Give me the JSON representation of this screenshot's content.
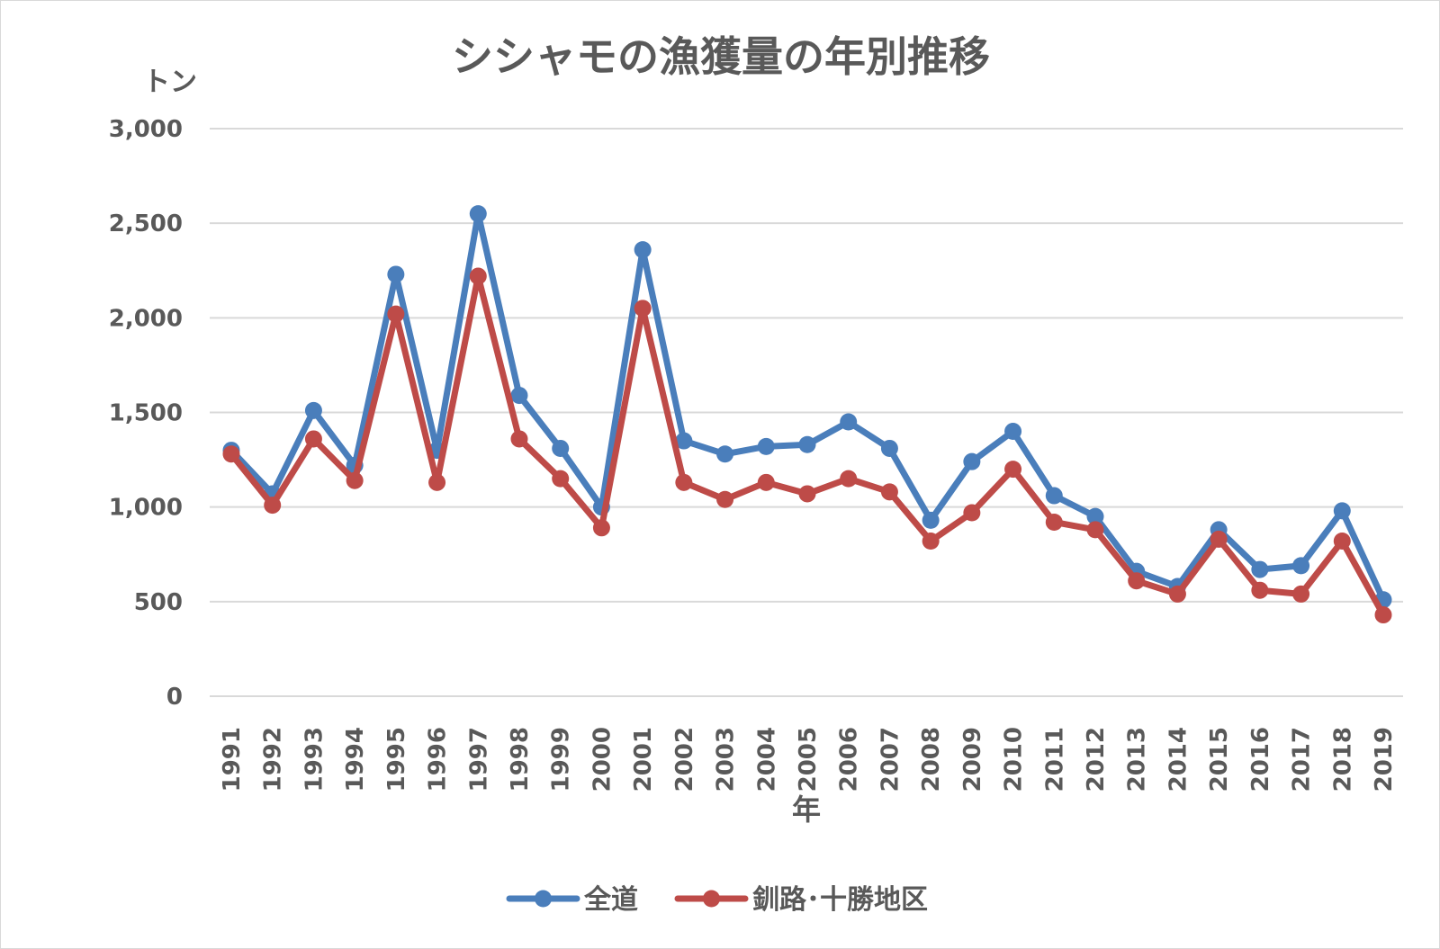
{
  "chart_data": {
    "type": "line",
    "title": "シシャモの漁獲量の年別推移",
    "ylabel": "トン",
    "xlabel": "年",
    "ylim": [
      0,
      3000
    ],
    "yticks": [
      0,
      500,
      1000,
      1500,
      2000,
      2500,
      3000
    ],
    "ytick_labels": [
      "0",
      "500",
      "1,000",
      "1,500",
      "2,000",
      "2,500",
      "3,000"
    ],
    "grid": true,
    "legend_position": "bottom",
    "categories": [
      "1991",
      "1992",
      "1993",
      "1994",
      "1995",
      "1996",
      "1997",
      "1998",
      "1999",
      "2000",
      "2001",
      "2002",
      "2003",
      "2004",
      "2005",
      "2006",
      "2007",
      "2008",
      "2009",
      "2010",
      "2011",
      "2012",
      "2013",
      "2014",
      "2015",
      "2016",
      "2017",
      "2018",
      "2019"
    ],
    "series": [
      {
        "name": "全道",
        "color": "#4a7ebb",
        "values": [
          1300,
          1070,
          1510,
          1220,
          2230,
          1300,
          2550,
          1590,
          1310,
          1000,
          2360,
          1350,
          1280,
          1320,
          1330,
          1450,
          1310,
          930,
          1240,
          1400,
          1060,
          950,
          660,
          580,
          880,
          670,
          690,
          980,
          510
        ]
      },
      {
        "name": "釧路･十勝地区",
        "color": "#be4b48",
        "values": [
          1280,
          1010,
          1360,
          1140,
          2020,
          1130,
          2220,
          1360,
          1150,
          890,
          2050,
          1130,
          1040,
          1130,
          1070,
          1150,
          1080,
          820,
          970,
          1200,
          920,
          880,
          610,
          540,
          830,
          560,
          540,
          820,
          430
        ]
      }
    ]
  }
}
